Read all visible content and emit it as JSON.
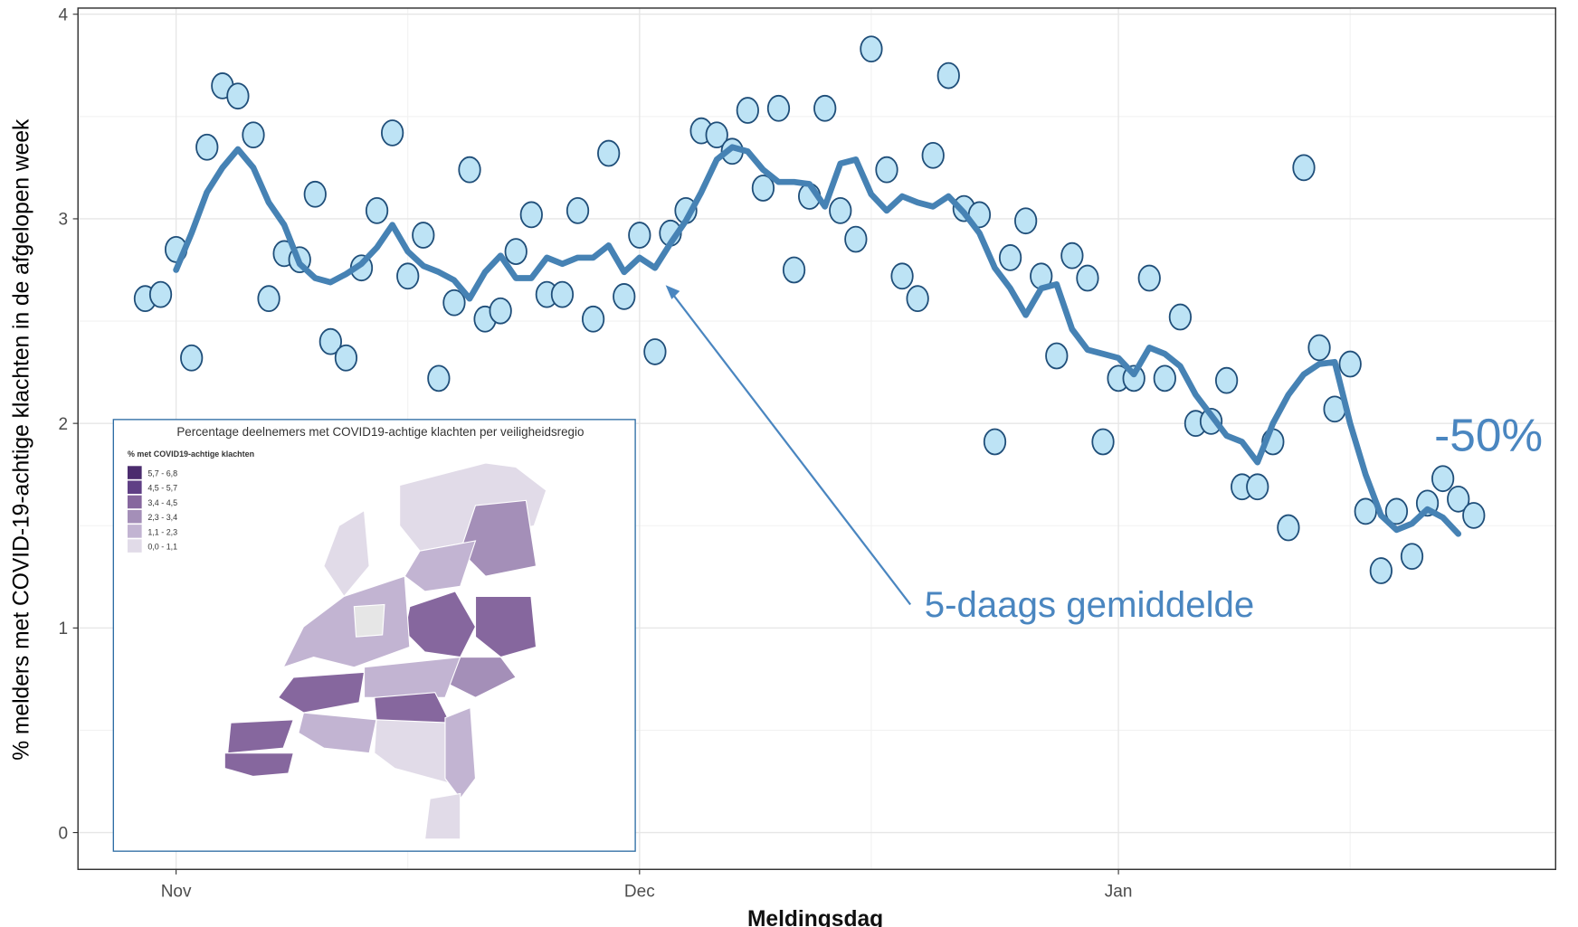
{
  "chart_data": {
    "type": "scatter",
    "x_label": "Meldingsdag",
    "y_label": "% melders met COVID-19-achtige klachten in de afgelopen week",
    "xlim": [
      -6.35,
      89.3
    ],
    "xticks": [
      {
        "value": 0,
        "label": "Nov"
      },
      {
        "value": 30,
        "label": "Dec"
      },
      {
        "value": 61,
        "label": "Jan"
      }
    ],
    "ylim": [
      -0.18,
      4.03
    ],
    "yticks": [
      0,
      1,
      2,
      3,
      4
    ],
    "grid": true,
    "points": {
      "color": "#bde3f5",
      "edge_color": "#1f4e79",
      "x": [
        -2,
        -1,
        0,
        1,
        2,
        3,
        4,
        5,
        6,
        7,
        8,
        9,
        10,
        11,
        12,
        13,
        14,
        15,
        16,
        17,
        18,
        19,
        20,
        21,
        22,
        23,
        24,
        25,
        26,
        27,
        28,
        29,
        30,
        31,
        32,
        33,
        34,
        35,
        36,
        37,
        38,
        39,
        40,
        41,
        42,
        43,
        44,
        45,
        46,
        47,
        48,
        49,
        50,
        51,
        52,
        53,
        54,
        55,
        56,
        57,
        58,
        59,
        60,
        61,
        62,
        63,
        64,
        65,
        66,
        67,
        68,
        69,
        70,
        71,
        72,
        73,
        74,
        75,
        76,
        77,
        78,
        79,
        80,
        81,
        82,
        83,
        84
      ],
      "values": [
        2.61,
        2.63,
        2.85,
        2.32,
        3.35,
        3.65,
        3.6,
        3.41,
        2.61,
        2.83,
        2.8,
        3.12,
        2.4,
        2.32,
        2.76,
        3.04,
        3.42,
        2.72,
        2.92,
        2.22,
        2.59,
        3.24,
        2.51,
        2.55,
        2.84,
        3.02,
        2.63,
        2.63,
        3.04,
        2.51,
        3.32,
        2.62,
        2.92,
        2.35,
        2.93,
        3.04,
        3.43,
        3.41,
        3.33,
        3.53,
        3.15,
        3.54,
        2.75,
        3.11,
        3.54,
        3.04,
        2.9,
        3.83,
        3.24,
        2.72,
        2.61,
        3.31,
        3.7,
        3.05,
        3.02,
        1.91,
        2.81,
        2.99,
        2.72,
        2.33,
        2.82,
        2.71,
        1.91,
        2.22,
        2.22,
        2.71,
        2.22,
        2.52,
        2.0,
        2.01,
        2.21,
        1.69,
        1.69,
        1.91,
        1.49,
        3.25,
        2.37,
        2.07,
        2.29,
        1.57,
        1.28,
        1.57,
        1.35,
        1.61,
        1.73,
        1.63,
        1.55
      ]
    },
    "line": {
      "color": "#4682b4",
      "x": [
        0,
        1,
        2,
        3,
        4,
        5,
        6,
        7,
        8,
        9,
        10,
        11,
        12,
        13,
        14,
        15,
        16,
        17,
        18,
        19,
        20,
        21,
        22,
        23,
        24,
        25,
        26,
        27,
        28,
        29,
        30,
        31,
        32,
        33,
        34,
        35,
        36,
        37,
        38,
        39,
        40,
        41,
        42,
        43,
        44,
        45,
        46,
        47,
        48,
        49,
        50,
        51,
        52,
        53,
        54,
        55,
        56,
        57,
        58,
        59,
        60,
        61,
        62,
        63,
        64,
        65,
        66,
        67,
        68,
        69,
        70,
        71,
        72,
        73,
        74,
        75,
        76,
        77,
        78,
        79,
        80,
        81,
        82,
        83
      ],
      "values": [
        2.75,
        2.93,
        3.13,
        3.25,
        3.34,
        3.25,
        3.08,
        2.97,
        2.78,
        2.71,
        2.69,
        2.73,
        2.78,
        2.86,
        2.97,
        2.84,
        2.77,
        2.74,
        2.7,
        2.61,
        2.74,
        2.82,
        2.71,
        2.71,
        2.81,
        2.78,
        2.81,
        2.81,
        2.87,
        2.74,
        2.81,
        2.76,
        2.88,
        2.99,
        3.13,
        3.29,
        3.35,
        3.33,
        3.24,
        3.18,
        3.18,
        3.17,
        3.06,
        3.27,
        3.29,
        3.12,
        3.04,
        3.11,
        3.08,
        3.06,
        3.11,
        3.03,
        2.93,
        2.76,
        2.66,
        2.53,
        2.66,
        2.68,
        2.46,
        2.36,
        2.34,
        2.32,
        2.24,
        2.37,
        2.34,
        2.28,
        2.14,
        2.04,
        1.94,
        1.91,
        1.81,
        2.0,
        2.14,
        2.24,
        2.29,
        2.3,
        2.0,
        1.75,
        1.55,
        1.48,
        1.51,
        1.58,
        1.54,
        1.46
      ]
    },
    "annotations": [
      {
        "text": "5-daags gemiddelde"
      },
      {
        "text": "-50%"
      }
    ],
    "inset": {
      "title": "Percentage deelnemers met COVID19-achtige klachten per veiligheidsregio",
      "legend_title": "% met COVID19-achtige klachten",
      "legend": [
        {
          "label": "5,7 - 6,8",
          "color": "#4b2c6e"
        },
        {
          "label": "4,5 - 5,7",
          "color": "#5f3f85"
        },
        {
          "label": "3,4 - 4,5",
          "color": "#86679e"
        },
        {
          "label": "2,3 - 3,4",
          "color": "#a48fb8"
        },
        {
          "label": "1,1 - 2,3",
          "color": "#c2b4d2"
        },
        {
          "label": "0,0 - 1,1",
          "color": "#e1dbe8"
        }
      ]
    }
  }
}
